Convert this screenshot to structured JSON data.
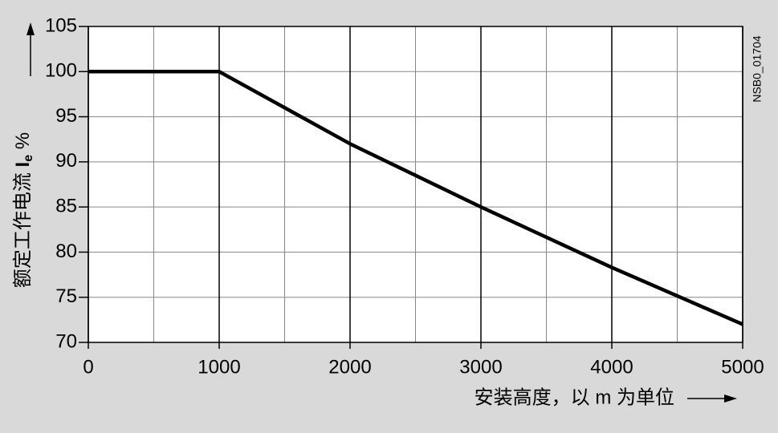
{
  "chart_data": {
    "type": "line",
    "ylabel": "额定工作电流 ",
    "ylabel_symbol": "I",
    "ylabel_subscript": "e",
    "ylabel_unit": " %",
    "xlabel": "安装高度，以 m 为单位",
    "annotation": "NSB0_01704",
    "x": [
      0,
      1000,
      2000,
      3000,
      4000,
      5000
    ],
    "series": [
      {
        "color": "#000000",
        "values": [
          100,
          100,
          92,
          85,
          78.3,
          72
        ]
      }
    ],
    "xlim": [
      0,
      5000
    ],
    "xticks": [
      0,
      1000,
      2000,
      3000,
      4000,
      5000
    ],
    "ylim": [
      70,
      105
    ],
    "yticks": [
      70,
      75,
      80,
      85,
      90,
      95,
      100,
      105
    ],
    "grid": true
  }
}
